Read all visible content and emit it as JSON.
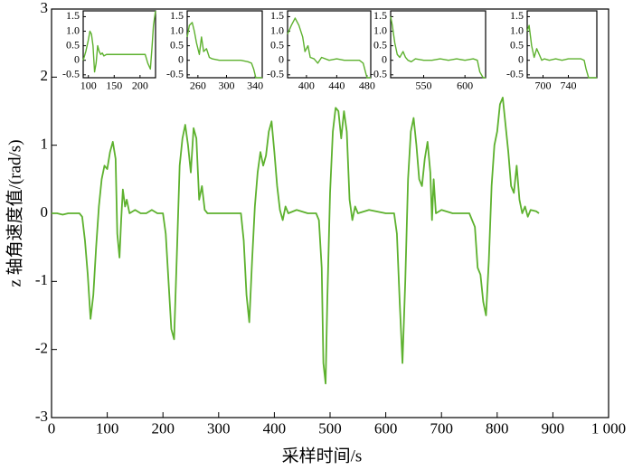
{
  "chart_data": [
    {
      "type": "line",
      "xlabel": "采样时间/s",
      "ylabel": "z 轴角速度值/(rad/s)",
      "xlim": [
        0,
        1000
      ],
      "ylim": [
        -3,
        3
      ],
      "xticks": [
        0,
        100,
        200,
        300,
        400,
        500,
        600,
        700,
        800,
        900,
        {
          "value": 1000,
          "label": "1 000"
        }
      ],
      "yticks": [
        -3,
        -2,
        -1,
        0,
        1,
        2,
        3
      ],
      "color": "#5db12e",
      "x": [
        0,
        10,
        20,
        30,
        40,
        50,
        55,
        60,
        65,
        70,
        75,
        80,
        85,
        90,
        95,
        100,
        105,
        110,
        115,
        118,
        122,
        125,
        128,
        132,
        135,
        140,
        150,
        160,
        170,
        180,
        190,
        200,
        205,
        210,
        215,
        220,
        225,
        230,
        235,
        240,
        245,
        250,
        255,
        260,
        265,
        270,
        275,
        280,
        300,
        320,
        340,
        345,
        350,
        355,
        360,
        365,
        370,
        375,
        380,
        385,
        390,
        395,
        400,
        405,
        410,
        415,
        420,
        425,
        440,
        460,
        475,
        480,
        485,
        488,
        492,
        495,
        500,
        505,
        510,
        515,
        520,
        525,
        530,
        535,
        540,
        545,
        550,
        570,
        600,
        615,
        620,
        625,
        630,
        635,
        640,
        645,
        650,
        655,
        660,
        665,
        670,
        675,
        680,
        683,
        686,
        690,
        700,
        720,
        750,
        760,
        765,
        770,
        775,
        780,
        785,
        790,
        795,
        800,
        805,
        810,
        815,
        820,
        825,
        830,
        835,
        840,
        845,
        850,
        855,
        860,
        870,
        875
      ],
      "values": [
        0,
        0,
        -0.02,
        0,
        0,
        0,
        -0.05,
        -0.4,
        -0.9,
        -1.55,
        -1.2,
        -0.5,
        0.1,
        0.5,
        0.7,
        0.65,
        0.9,
        1.05,
        0.8,
        -0.3,
        -0.65,
        -0.1,
        0.35,
        0.1,
        0.2,
        0,
        0.05,
        0,
        0,
        0.05,
        0,
        0,
        -0.3,
        -1,
        -1.7,
        -1.85,
        -0.6,
        0.7,
        1.1,
        1.3,
        1,
        0.6,
        1.25,
        1.1,
        0.2,
        0.4,
        0.05,
        0,
        0,
        0,
        0,
        -0.4,
        -1.2,
        -1.6,
        -0.7,
        0.1,
        0.6,
        0.9,
        0.7,
        0.85,
        1.2,
        1.35,
        0.9,
        0.4,
        0.05,
        -0.1,
        0.1,
        0,
        0.05,
        0,
        0,
        -0.1,
        -0.8,
        -2.2,
        -2.5,
        -1.3,
        0.3,
        1.2,
        1.55,
        1.5,
        1.1,
        1.5,
        1.2,
        0.2,
        -0.1,
        0.1,
        0,
        0.05,
        0,
        0,
        -0.3,
        -1.3,
        -2.2,
        -1,
        0.5,
        1.2,
        1.4,
        1,
        0.5,
        0.4,
        0.8,
        1.05,
        0.6,
        -0.1,
        0.5,
        0,
        0.05,
        0,
        0,
        -0.2,
        -0.8,
        -0.9,
        -1.3,
        -1.5,
        -0.7,
        0.4,
        1,
        1.2,
        1.6,
        1.7,
        1.3,
        0.9,
        0.4,
        0.3,
        0.7,
        0.2,
        0,
        0.1,
        -0.05,
        0.05,
        0.03,
        0
      ]
    },
    {
      "type": "line",
      "xlim": [
        90,
        230
      ],
      "ylim": [
        -0.6,
        1.7
      ],
      "xticks": [
        100,
        150,
        200
      ],
      "yticks": [
        -0.5,
        0,
        0.5,
        {
          "value": 1,
          "label": "1.0"
        },
        1.5
      ],
      "color": "#5db12e",
      "x": [
        90,
        95,
        100,
        103,
        106,
        109,
        112,
        115,
        118,
        121,
        124,
        127,
        130,
        135,
        140,
        150,
        160,
        180,
        200,
        210,
        215,
        220,
        223,
        226,
        230
      ],
      "values": [
        0,
        0.3,
        0.7,
        1,
        0.9,
        0.5,
        -0.4,
        -0.1,
        0.5,
        0.3,
        0.2,
        0.25,
        0.15,
        0.2,
        0.2,
        0.2,
        0.2,
        0.2,
        0.2,
        0.2,
        -0.1,
        -0.3,
        0.4,
        1.2,
        1.7
      ]
    },
    {
      "type": "line",
      "xlim": [
        245,
        350
      ],
      "ylim": [
        -0.6,
        1.7
      ],
      "xticks": [
        260,
        300,
        340
      ],
      "yticks": [
        -0.5,
        0,
        0.5,
        {
          "value": 1,
          "label": "1.0"
        },
        1.5
      ],
      "color": "#5db12e",
      "x": [
        245,
        248,
        252,
        255,
        258,
        262,
        265,
        268,
        272,
        276,
        280,
        290,
        300,
        310,
        320,
        330,
        335,
        338,
        341,
        344,
        350
      ],
      "values": [
        0.8,
        1.2,
        1.3,
        1,
        0.6,
        0.2,
        0.8,
        0.3,
        0.4,
        0.1,
        0.05,
        0,
        0,
        0,
        0,
        -0.05,
        -0.1,
        -0.3,
        -0.6,
        -0.6,
        -0.6
      ]
    },
    {
      "type": "line",
      "xlim": [
        375,
        485
      ],
      "ylim": [
        -0.6,
        1.7
      ],
      "xticks": [
        400,
        440,
        480
      ],
      "yticks": [
        -0.5,
        0,
        0.5,
        {
          "value": 1,
          "label": "1.0"
        },
        1.5
      ],
      "color": "#5db12e",
      "x": [
        375,
        380,
        385,
        390,
        395,
        398,
        402,
        405,
        410,
        415,
        420,
        430,
        440,
        450,
        460,
        470,
        475,
        478,
        480,
        485
      ],
      "values": [
        0.9,
        1.2,
        1.45,
        1.2,
        0.8,
        0.3,
        0.5,
        0.1,
        0.05,
        -0.1,
        0.1,
        0,
        0.05,
        0,
        0,
        0,
        -0.1,
        -0.4,
        -0.6,
        -0.6
      ]
    },
    {
      "type": "line",
      "xlim": [
        510,
        625
      ],
      "ylim": [
        -0.6,
        1.7
      ],
      "xticks": [
        550,
        600
      ],
      "yticks": [
        -0.5,
        0,
        0.5,
        {
          "value": 1,
          "label": "1.0"
        },
        1.5
      ],
      "color": "#5db12e",
      "x": [
        510,
        512,
        515,
        518,
        521,
        525,
        528,
        531,
        535,
        540,
        550,
        560,
        570,
        580,
        590,
        600,
        610,
        615,
        618,
        622,
        625
      ],
      "values": [
        1.5,
        1.2,
        0.6,
        0.2,
        0.1,
        0.3,
        0.1,
        0,
        -0.05,
        0.05,
        0,
        0,
        0.05,
        0,
        0.05,
        0,
        0.05,
        0,
        -0.4,
        -0.6,
        -0.6
      ]
    },
    {
      "type": "line",
      "xlim": [
        675,
        785
      ],
      "ylim": [
        -0.6,
        1.7
      ],
      "xticks": [
        700,
        740
      ],
      "yticks": [
        -0.5,
        0,
        0.5,
        {
          "value": 1,
          "label": "1.0"
        },
        1.5
      ],
      "color": "#5db12e",
      "x": [
        675,
        678,
        682,
        686,
        690,
        694,
        698,
        702,
        710,
        720,
        730,
        740,
        750,
        760,
        765,
        768,
        772,
        775,
        780,
        785
      ],
      "values": [
        1,
        1.2,
        0.5,
        0.1,
        0.4,
        0.2,
        0,
        0.05,
        0,
        0.05,
        0,
        0.05,
        0.05,
        0.05,
        0,
        -0.3,
        -0.6,
        -0.6,
        -0.6,
        -0.6
      ]
    }
  ]
}
